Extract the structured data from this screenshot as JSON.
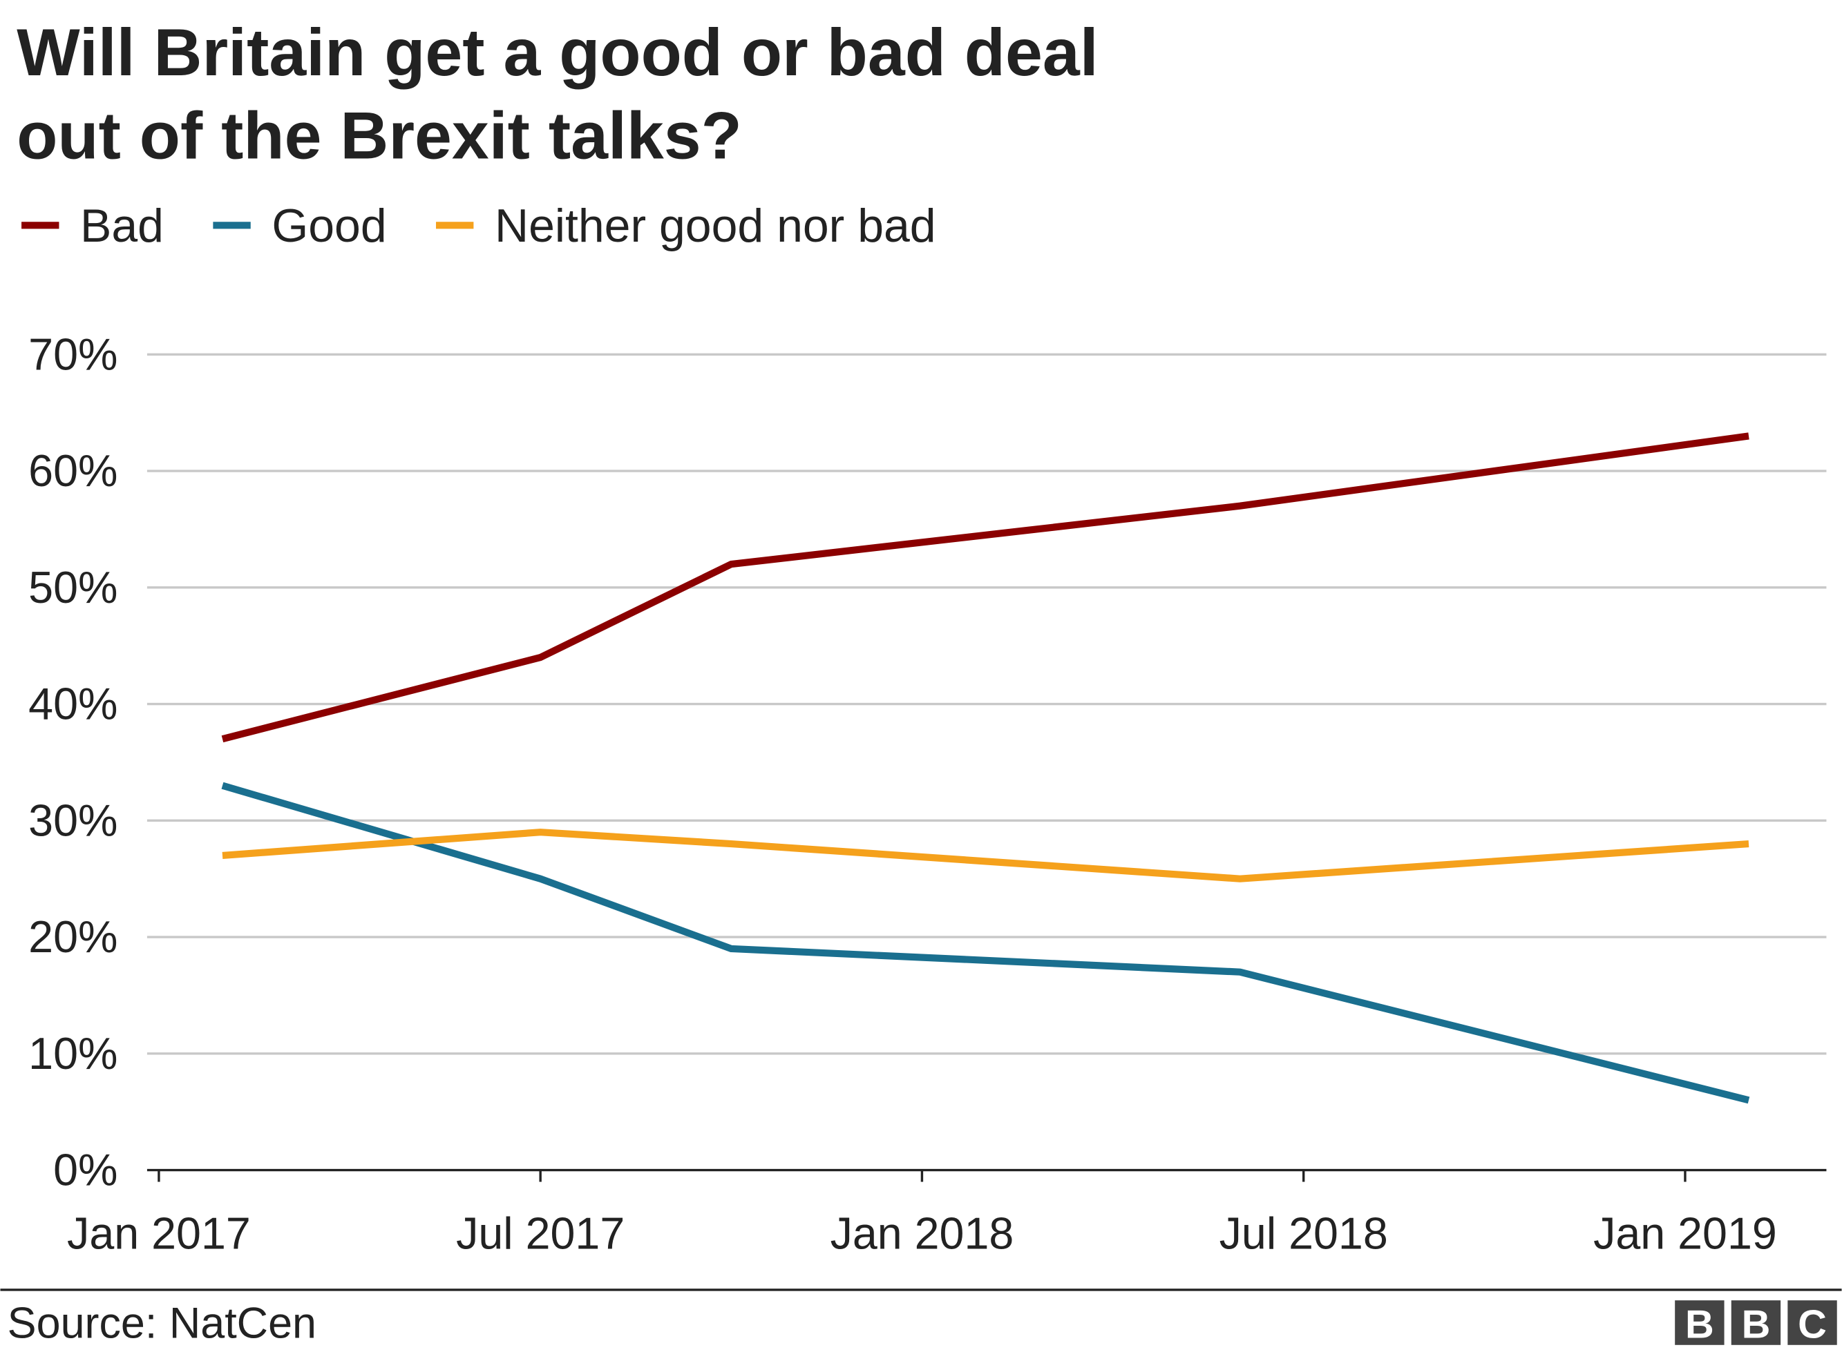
{
  "chart_data": {
    "type": "line",
    "title": [
      "Will Britain get a good or bad deal",
      "out of the Brexit talks?"
    ],
    "x": [
      "2017-02",
      "2017-07",
      "2017-10",
      "2018-06",
      "2019-02"
    ],
    "series": [
      {
        "name": "Bad",
        "color": "#8b0000",
        "values": [
          37,
          44,
          52,
          57,
          63
        ]
      },
      {
        "name": "Good",
        "color": "#1a6f8f",
        "values": [
          33,
          25,
          19,
          17,
          6
        ]
      },
      {
        "name": "Neither good nor bad",
        "color": "#f5a11c",
        "values": [
          27,
          29,
          28,
          25,
          28
        ]
      }
    ],
    "xlim": [
      "2017-01",
      "2019-03"
    ],
    "xticks": [
      {
        "value": "2017-01",
        "label": "Jan 2017"
      },
      {
        "value": "2017-07",
        "label": "Jul 2017"
      },
      {
        "value": "2018-01",
        "label": "Jan 2018"
      },
      {
        "value": "2018-07",
        "label": "Jul 2018"
      },
      {
        "value": "2019-01",
        "label": "Jan 2019"
      }
    ],
    "ylim": [
      0,
      70
    ],
    "yticks": [
      {
        "value": 0,
        "label": "0%"
      },
      {
        "value": 10,
        "label": "10%"
      },
      {
        "value": 20,
        "label": "20%"
      },
      {
        "value": 30,
        "label": "30%"
      },
      {
        "value": 40,
        "label": "40%"
      },
      {
        "value": 50,
        "label": "50%"
      },
      {
        "value": 60,
        "label": "60%"
      },
      {
        "value": 70,
        "label": "70%"
      }
    ],
    "grid": true,
    "legend": "top",
    "source": "Source: NatCen",
    "logo": [
      "B",
      "B",
      "C"
    ]
  }
}
